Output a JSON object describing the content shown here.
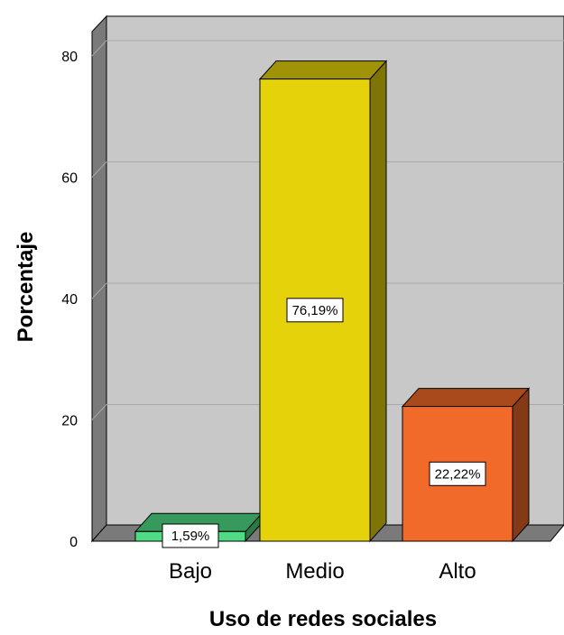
{
  "chart_data": {
    "type": "bar",
    "categories": [
      "Bajo",
      "Medio",
      "Alto"
    ],
    "values": [
      1.59,
      76.19,
      22.22
    ],
    "data_labels": [
      "1,59%",
      "76,19%",
      "22,22%"
    ],
    "colors": [
      "#4fdc84",
      "#e6d20a",
      "#f26a2a"
    ],
    "title": "",
    "xlabel": "Uso de redes sociales",
    "ylabel": "Porcentaje",
    "ylim": [
      0,
      80
    ],
    "yticks": [
      "0",
      "20",
      "40",
      "60",
      "80"
    ],
    "grid": true,
    "style": "3d"
  }
}
